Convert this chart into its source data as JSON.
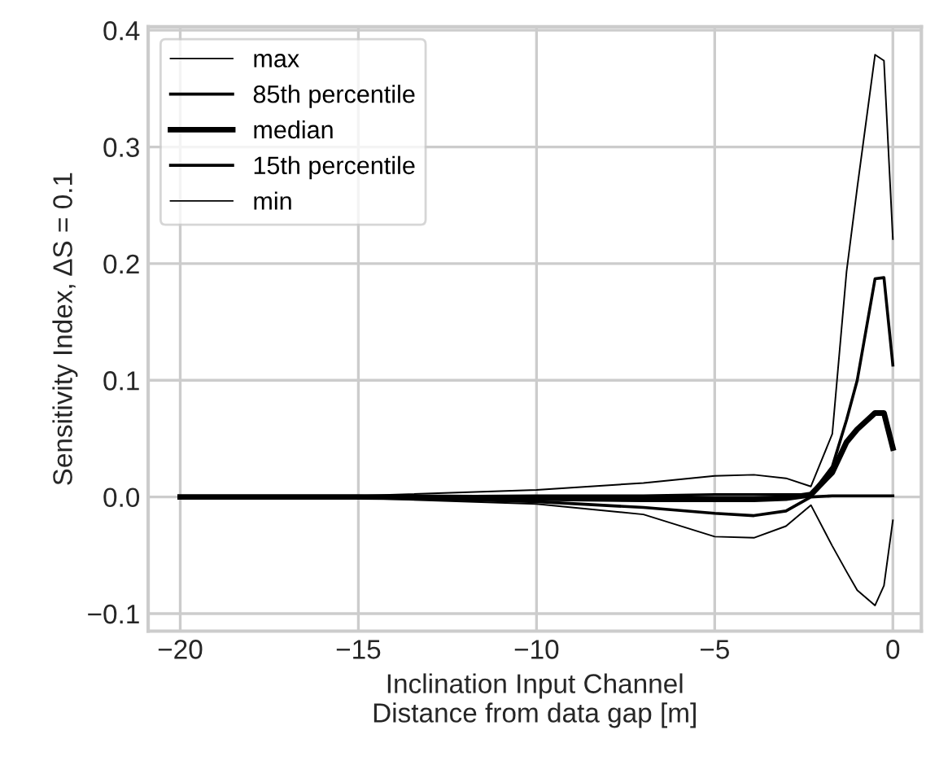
{
  "chart_data": {
    "type": "line",
    "xlabel": "Inclination Input Channel\nDistance from data gap [m]",
    "ylabel": "Sensitivity Index, ΔS = 0.1",
    "x": [
      -20,
      -15,
      -10,
      -7,
      -5,
      -3.9,
      -3,
      -2.3,
      -1.7,
      -1.3,
      -1.0,
      -0.5,
      -0.25,
      0
    ],
    "series": [
      {
        "name": "max",
        "color": "#000000",
        "values": [
          0,
          0.001,
          0.006,
          0.012,
          0.018,
          0.019,
          0.016,
          0.009,
          0.054,
          0.193,
          0.265,
          0.379,
          0.374,
          0.221
        ]
      },
      {
        "name": "85th percentile",
        "color": "#000000",
        "values": [
          0,
          0,
          0.001,
          0.001,
          0.002,
          0.002,
          0.002,
          0.002,
          0.026,
          0.066,
          0.1,
          0.187,
          0.188,
          0.113
        ]
      },
      {
        "name": "median",
        "color": "#000000",
        "values": [
          0,
          0,
          -0.001,
          -0.002,
          -0.002,
          -0.002,
          -0.001,
          0.002,
          0.021,
          0.047,
          0.058,
          0.072,
          0.072,
          0.042
        ]
      },
      {
        "name": "15th percentile",
        "color": "#000000",
        "values": [
          0,
          0,
          -0.004,
          -0.009,
          -0.014,
          -0.016,
          -0.012,
          0,
          0.001,
          0.001,
          0.001,
          0.001,
          0.001,
          0.001
        ]
      },
      {
        "name": "min",
        "color": "#000000",
        "values": [
          0,
          -0.001,
          -0.006,
          -0.015,
          -0.034,
          -0.035,
          -0.025,
          -0.007,
          -0.042,
          -0.064,
          -0.08,
          -0.093,
          -0.076,
          -0.02
        ]
      }
    ],
    "xlim": [
      -20.9,
      0.8
    ],
    "ylim": [
      -0.115,
      0.403
    ],
    "xticks": [
      {
        "value": -20,
        "label": "−20"
      },
      {
        "value": -15,
        "label": "−15"
      },
      {
        "value": -10,
        "label": "−10"
      },
      {
        "value": -5,
        "label": "−5"
      },
      0
    ],
    "yticks": [
      {
        "value": -0.1,
        "label": "−0.1"
      },
      {
        "value": 0,
        "label": "0.0"
      },
      {
        "value": 0.1,
        "label": "0.1"
      },
      {
        "value": 0.2,
        "label": "0.2"
      },
      {
        "value": 0.3,
        "label": "0.3"
      },
      {
        "value": 0.4,
        "label": "0.4"
      }
    ],
    "grid": true,
    "legend": "top left",
    "marker": "none",
    "line_style": "solid"
  }
}
